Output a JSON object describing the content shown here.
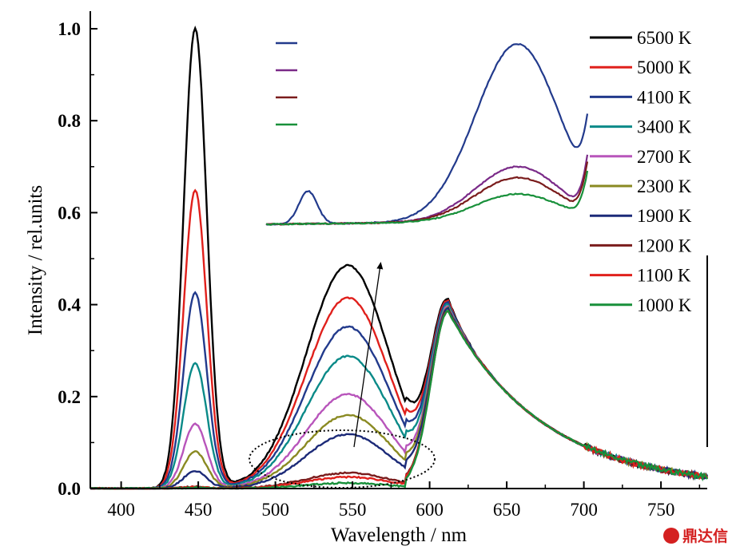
{
  "chart_data": {
    "type": "line",
    "xlabel": "Wavelength / nm",
    "ylabel": "Intensity / rel.units",
    "xlim": [
      380,
      780
    ],
    "ylim": [
      0,
      1.0
    ],
    "xticks": [
      "400",
      "450",
      "500",
      "550",
      "600",
      "650",
      "700",
      "750"
    ],
    "yticks": [
      "0.0",
      "0.2",
      "0.4",
      "0.6",
      "0.8",
      "1.0"
    ],
    "legend_position": "right",
    "series": [
      {
        "name": "6500 K",
        "color": "#000000",
        "blue": 1.0,
        "green": 0.485
      },
      {
        "name": "5000 K",
        "color": "#e0201c",
        "blue": 0.648,
        "green": 0.415
      },
      {
        "name": "4100 K",
        "color": "#223a8c",
        "blue": 0.425,
        "green": 0.352
      },
      {
        "name": "3400 K",
        "color": "#0a8a88",
        "blue": 0.272,
        "green": 0.288
      },
      {
        "name": "2700 K",
        "color": "#b855bb",
        "blue": 0.14,
        "green": 0.205
      },
      {
        "name": "2300 K",
        "color": "#8a8a22",
        "blue": 0.08,
        "green": 0.16
      },
      {
        "name": "1900 K",
        "color": "#1c2a78",
        "blue": 0.038,
        "green": 0.118
      },
      {
        "name": "1200 K",
        "color": "#7a1c1c",
        "blue": 0.004,
        "green": 0.034
      },
      {
        "name": "1100 K",
        "color": "#e0201c",
        "blue": 0.003,
        "green": 0.025
      },
      {
        "name": "1000 K",
        "color": "#18903a",
        "blue": 0.002,
        "green": 0.012
      }
    ],
    "red_peak": {
      "x": 612,
      "y": 0.385
    },
    "inset": {
      "series": [
        {
          "color": "#223a8c",
          "blue": 0.18,
          "peak": 0.97
        },
        {
          "color": "#7a2a88",
          "blue": 0.0,
          "peak": 0.3
        },
        {
          "color": "#7a1c1c",
          "blue": 0.0,
          "peak": 0.24
        },
        {
          "color": "#18903a",
          "blue": 0.0,
          "peak": 0.15
        }
      ]
    },
    "annotations": [
      "dotted ellipse around 1900-1000 K green band",
      "arrow pointing upward"
    ]
  },
  "watermark": {
    "text": "鼎达信",
    "color": "#d42020"
  }
}
